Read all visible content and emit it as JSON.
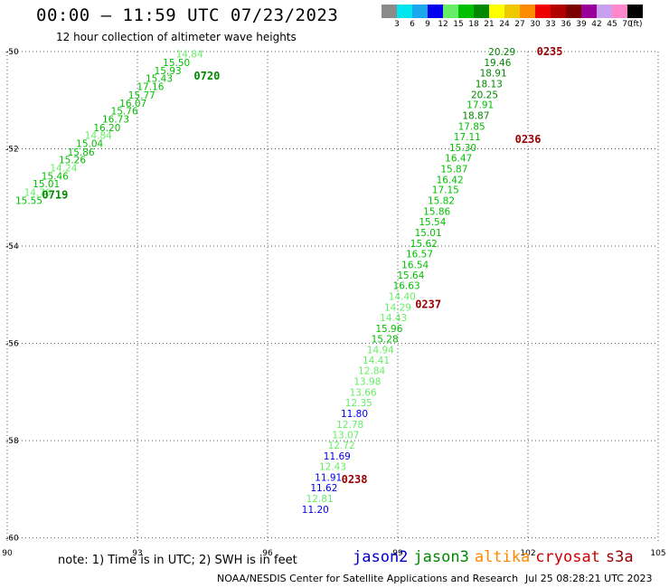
{
  "title": "00:00 – 11:59 UTC 07/23/2023",
  "subtitle": "12 hour collection of altimeter wave heights",
  "color_scale": {
    "unit": "(ft)",
    "bins": [
      {
        "label": "3",
        "color": "#8a8a8a"
      },
      {
        "label": "6",
        "color": "#00e5ee"
      },
      {
        "label": "9",
        "color": "#1aa7ee"
      },
      {
        "label": "12",
        "color": "#0000ee"
      },
      {
        "label": "15",
        "color": "#66ee66"
      },
      {
        "label": "18",
        "color": "#00c000"
      },
      {
        "label": "21",
        "color": "#008800"
      },
      {
        "label": "24",
        "color": "#ffff00"
      },
      {
        "label": "27",
        "color": "#eec900"
      },
      {
        "label": "30",
        "color": "#ff8c00"
      },
      {
        "label": "33",
        "color": "#ee0000"
      },
      {
        "label": "36",
        "color": "#b00000"
      },
      {
        "label": "39",
        "color": "#7a0000"
      },
      {
        "label": "42",
        "color": "#9a009a"
      },
      {
        "label": "45",
        "color": "#c8a0ee"
      },
      {
        "label": "70",
        "color": "#ff88cc"
      },
      {
        "label": "",
        "color": "#000000"
      }
    ]
  },
  "note": "note: 1) Time is in UTC; 2) SWH is in feet",
  "satellites": [
    {
      "name": "jason2",
      "color": "#0000cc"
    },
    {
      "name": "jason3",
      "color": "#008800"
    },
    {
      "name": "altika",
      "color": "#ff8800"
    },
    {
      "name": "cryosat",
      "color": "#cc0000"
    },
    {
      "name": "s3a",
      "color": "#990000"
    }
  ],
  "credit": "NOAA/NESDIS Center for Satellite Applications and Research",
  "timestamp": "Jul 25 08:28:21 UTC 2023",
  "chart_data": {
    "type": "scatter",
    "xlim": [
      90,
      105
    ],
    "ylim": [
      -60.1,
      -50
    ],
    "x_ticks": [
      "90",
      "93",
      "96",
      "99",
      "102",
      "105"
    ],
    "x_tick_values": [
      90,
      93,
      96,
      99,
      102,
      105
    ],
    "y_ticks": [
      "-50",
      "-52",
      "-54",
      "-56",
      "-58",
      "-60"
    ],
    "y_tick_values": [
      -50,
      -52,
      -54,
      -56,
      -58,
      -60
    ],
    "grid": true,
    "time_labels": [
      {
        "text": "0720",
        "lon": 94.3,
        "lat": -50.5,
        "color": "#008800"
      },
      {
        "text": "0719",
        "lon": 90.8,
        "lat": -52.95,
        "color": "#008800"
      },
      {
        "text": "0235",
        "lon": 102.2,
        "lat": -50.0,
        "color": "#990000"
      },
      {
        "text": "0236",
        "lon": 101.7,
        "lat": -51.8,
        "color": "#990000"
      },
      {
        "text": "0237",
        "lon": 99.4,
        "lat": -55.2,
        "color": "#990000"
      },
      {
        "text": "0238",
        "lon": 97.7,
        "lat": -58.8,
        "color": "#990000"
      }
    ],
    "series": [
      {
        "name": "track-0719-0720",
        "points": [
          {
            "label": "14.84",
            "lon": 94.2,
            "lat": -50.05,
            "color": "#66ee66"
          },
          {
            "label": "15.50",
            "lon": 93.9,
            "lat": -50.22,
            "color": "#00c000"
          },
          {
            "label": "15.93",
            "lon": 93.7,
            "lat": -50.39,
            "color": "#00c000"
          },
          {
            "label": "15.43",
            "lon": 93.5,
            "lat": -50.55,
            "color": "#00c000"
          },
          {
            "label": "17.16",
            "lon": 93.3,
            "lat": -50.72,
            "color": "#00c000"
          },
          {
            "label": "15.77",
            "lon": 93.1,
            "lat": -50.89,
            "color": "#00c000"
          },
          {
            "label": "16.07",
            "lon": 92.9,
            "lat": -51.06,
            "color": "#00c000"
          },
          {
            "label": "15.76",
            "lon": 92.7,
            "lat": -51.22,
            "color": "#00c000"
          },
          {
            "label": "16.73",
            "lon": 92.5,
            "lat": -51.39,
            "color": "#00c000"
          },
          {
            "label": "16.20",
            "lon": 92.3,
            "lat": -51.56,
            "color": "#00c000"
          },
          {
            "label": "14.84",
            "lon": 92.1,
            "lat": -51.72,
            "color": "#66ee66"
          },
          {
            "label": "15.04",
            "lon": 91.9,
            "lat": -51.89,
            "color": "#00c000"
          },
          {
            "label": "15.86",
            "lon": 91.7,
            "lat": -52.06,
            "color": "#00c000"
          },
          {
            "label": "15.26",
            "lon": 91.5,
            "lat": -52.22,
            "color": "#00c000"
          },
          {
            "label": "14.24",
            "lon": 91.3,
            "lat": -52.39,
            "color": "#66ee66"
          },
          {
            "label": "15.46",
            "lon": 91.1,
            "lat": -52.56,
            "color": "#00c000"
          },
          {
            "label": "15.01",
            "lon": 90.9,
            "lat": -52.72,
            "color": "#00c000"
          },
          {
            "label": "14.76",
            "lon": 90.7,
            "lat": -52.89,
            "color": "#66ee66"
          },
          {
            "label": "15.55",
            "lon": 90.5,
            "lat": -53.06,
            "color": "#00c000"
          }
        ]
      },
      {
        "name": "track-0235-0238",
        "points": [
          {
            "label": "20.29",
            "lon": 101.4,
            "lat": -50.0,
            "color": "#008800"
          },
          {
            "label": "19.46",
            "lon": 101.3,
            "lat": -50.22,
            "color": "#008800"
          },
          {
            "label": "18.91",
            "lon": 101.2,
            "lat": -50.44,
            "color": "#008800"
          },
          {
            "label": "18.13",
            "lon": 101.1,
            "lat": -50.66,
            "color": "#008800"
          },
          {
            "label": "20.25",
            "lon": 101.0,
            "lat": -50.88,
            "color": "#008800"
          },
          {
            "label": "17.91",
            "lon": 100.9,
            "lat": -51.09,
            "color": "#00c000"
          },
          {
            "label": "18.87",
            "lon": 100.8,
            "lat": -51.31,
            "color": "#008800"
          },
          {
            "label": "17.85",
            "lon": 100.7,
            "lat": -51.53,
            "color": "#00c000"
          },
          {
            "label": "17.11",
            "lon": 100.6,
            "lat": -51.75,
            "color": "#00c000"
          },
          {
            "label": "15.30",
            "lon": 100.5,
            "lat": -51.97,
            "color": "#00c000"
          },
          {
            "label": "16.47",
            "lon": 100.4,
            "lat": -52.19,
            "color": "#00c000"
          },
          {
            "label": "15.87",
            "lon": 100.3,
            "lat": -52.41,
            "color": "#00c000"
          },
          {
            "label": "16.42",
            "lon": 100.2,
            "lat": -52.63,
            "color": "#00c000"
          },
          {
            "label": "17.15",
            "lon": 100.1,
            "lat": -52.84,
            "color": "#00c000"
          },
          {
            "label": "15.82",
            "lon": 100.0,
            "lat": -53.06,
            "color": "#00c000"
          },
          {
            "label": "15.86",
            "lon": 99.9,
            "lat": -53.28,
            "color": "#00c000"
          },
          {
            "label": "15.54",
            "lon": 99.8,
            "lat": -53.5,
            "color": "#00c000"
          },
          {
            "label": "15.01",
            "lon": 99.7,
            "lat": -53.72,
            "color": "#00c000"
          },
          {
            "label": "15.62",
            "lon": 99.6,
            "lat": -53.94,
            "color": "#00c000"
          },
          {
            "label": "16.57",
            "lon": 99.5,
            "lat": -54.16,
            "color": "#00c000"
          },
          {
            "label": "16.54",
            "lon": 99.4,
            "lat": -54.38,
            "color": "#00c000"
          },
          {
            "label": "15.64",
            "lon": 99.3,
            "lat": -54.59,
            "color": "#00c000"
          },
          {
            "label": "16.63",
            "lon": 99.2,
            "lat": -54.81,
            "color": "#00c000"
          },
          {
            "label": "14.40",
            "lon": 99.1,
            "lat": -55.03,
            "color": "#66ee66"
          },
          {
            "label": "14.29",
            "lon": 99.0,
            "lat": -55.25,
            "color": "#66ee66"
          },
          {
            "label": "14.43",
            "lon": 98.9,
            "lat": -55.47,
            "color": "#66ee66"
          },
          {
            "label": "15.96",
            "lon": 98.8,
            "lat": -55.69,
            "color": "#00c000"
          },
          {
            "label": "15.28",
            "lon": 98.7,
            "lat": -55.91,
            "color": "#00c000"
          },
          {
            "label": "14.94",
            "lon": 98.6,
            "lat": -56.13,
            "color": "#66ee66"
          },
          {
            "label": "14.41",
            "lon": 98.5,
            "lat": -56.34,
            "color": "#66ee66"
          },
          {
            "label": "12.84",
            "lon": 98.4,
            "lat": -56.56,
            "color": "#66ee66"
          },
          {
            "label": "13.98",
            "lon": 98.3,
            "lat": -56.78,
            "color": "#66ee66"
          },
          {
            "label": "13.66",
            "lon": 98.2,
            "lat": -57.0,
            "color": "#66ee66"
          },
          {
            "label": "12.35",
            "lon": 98.1,
            "lat": -57.22,
            "color": "#66ee66"
          },
          {
            "label": "11.80",
            "lon": 98.0,
            "lat": -57.44,
            "color": "#0000ee"
          },
          {
            "label": "12.78",
            "lon": 97.9,
            "lat": -57.66,
            "color": "#66ee66"
          },
          {
            "label": "13.07",
            "lon": 97.8,
            "lat": -57.88,
            "color": "#66ee66"
          },
          {
            "label": "12.72",
            "lon": 97.7,
            "lat": -58.09,
            "color": "#66ee66"
          },
          {
            "label": "11.69",
            "lon": 97.6,
            "lat": -58.31,
            "color": "#0000ee"
          },
          {
            "label": "12.43",
            "lon": 97.5,
            "lat": -58.53,
            "color": "#66ee66"
          },
          {
            "label": "11.91",
            "lon": 97.4,
            "lat": -58.75,
            "color": "#0000ee"
          },
          {
            "label": "11.62",
            "lon": 97.3,
            "lat": -58.97,
            "color": "#0000ee"
          },
          {
            "label": "12.81",
            "lon": 97.2,
            "lat": -59.19,
            "color": "#66ee66"
          },
          {
            "label": "11.20",
            "lon": 97.1,
            "lat": -59.41,
            "color": "#0000ee"
          }
        ]
      }
    ]
  }
}
